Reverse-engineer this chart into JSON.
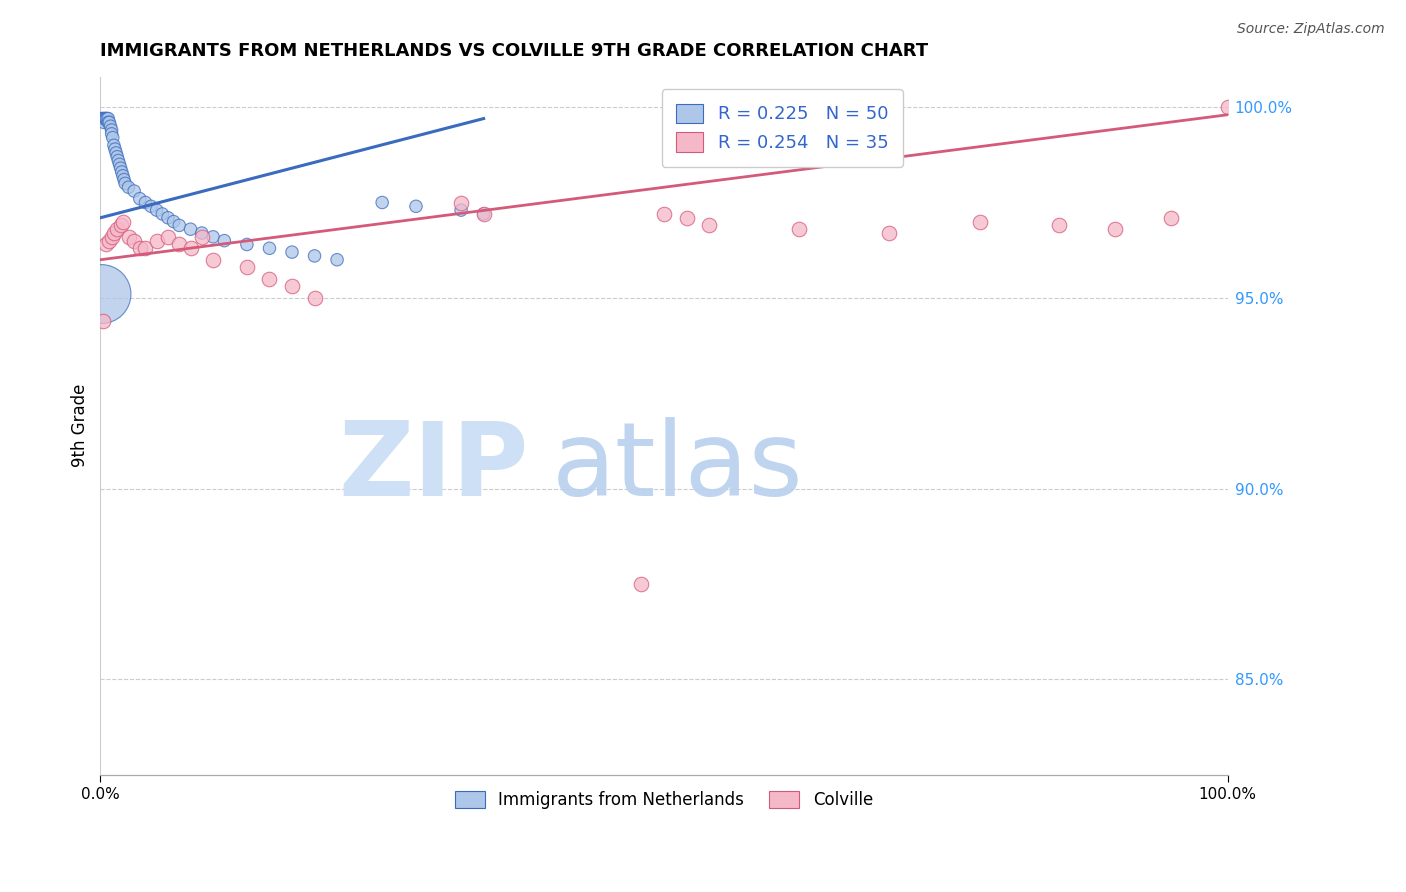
{
  "title": "IMMIGRANTS FROM NETHERLANDS VS COLVILLE 9TH GRADE CORRELATION CHART",
  "source": "Source: ZipAtlas.com",
  "ylabel": "9th Grade",
  "xlim": [
    0.0,
    1.0
  ],
  "ylim": [
    0.825,
    1.008
  ],
  "yticks": [
    0.85,
    0.9,
    0.95,
    1.0
  ],
  "ytick_labels": [
    "85.0%",
    "90.0%",
    "95.0%",
    "100.0%"
  ],
  "xtick_labels": [
    "0.0%",
    "100.0%"
  ],
  "legend_r1": "R = 0.225   N = 50",
  "legend_r2": "R = 0.254   N = 35",
  "blue_color": "#aec6e8",
  "blue_line_color": "#3a6bbf",
  "pink_color": "#f5b8c8",
  "pink_line_color": "#d45a7a",
  "blue_scatter_x": [
    0.001,
    0.002,
    0.003,
    0.003,
    0.004,
    0.005,
    0.005,
    0.006,
    0.007,
    0.007,
    0.008,
    0.009,
    0.01,
    0.01,
    0.011,
    0.012,
    0.013,
    0.014,
    0.015,
    0.016,
    0.017,
    0.018,
    0.019,
    0.02,
    0.021,
    0.022,
    0.025,
    0.03,
    0.035,
    0.04,
    0.045,
    0.05,
    0.055,
    0.06,
    0.065,
    0.07,
    0.08,
    0.09,
    0.1,
    0.11,
    0.13,
    0.15,
    0.17,
    0.19,
    0.21,
    0.25,
    0.28,
    0.32,
    0.34,
    0.001
  ],
  "blue_scatter_y": [
    0.997,
    0.997,
    0.997,
    0.996,
    0.997,
    0.997,
    0.997,
    0.997,
    0.997,
    0.996,
    0.996,
    0.995,
    0.994,
    0.993,
    0.992,
    0.99,
    0.989,
    0.988,
    0.987,
    0.986,
    0.985,
    0.984,
    0.983,
    0.982,
    0.981,
    0.98,
    0.979,
    0.978,
    0.976,
    0.975,
    0.974,
    0.973,
    0.972,
    0.971,
    0.97,
    0.969,
    0.968,
    0.967,
    0.966,
    0.965,
    0.964,
    0.963,
    0.962,
    0.961,
    0.96,
    0.975,
    0.974,
    0.973,
    0.972,
    0.951
  ],
  "blue_scatter_sizes": [
    80,
    80,
    80,
    80,
    80,
    80,
    80,
    80,
    80,
    80,
    80,
    80,
    80,
    80,
    80,
    80,
    80,
    80,
    80,
    80,
    80,
    80,
    80,
    80,
    80,
    80,
    80,
    80,
    80,
    80,
    80,
    80,
    80,
    80,
    80,
    80,
    80,
    80,
    80,
    80,
    80,
    80,
    80,
    80,
    80,
    80,
    80,
    80,
    80,
    1800
  ],
  "pink_scatter_x": [
    0.002,
    0.005,
    0.008,
    0.01,
    0.012,
    0.015,
    0.018,
    0.02,
    0.025,
    0.03,
    0.035,
    0.04,
    0.05,
    0.06,
    0.07,
    0.08,
    0.09,
    0.1,
    0.13,
    0.15,
    0.17,
    0.19,
    0.32,
    0.34,
    0.48,
    0.5,
    0.52,
    0.54,
    0.62,
    0.7,
    0.78,
    0.85,
    0.9,
    0.95,
    1.0
  ],
  "pink_scatter_y": [
    0.944,
    0.964,
    0.965,
    0.966,
    0.967,
    0.968,
    0.969,
    0.97,
    0.966,
    0.965,
    0.963,
    0.963,
    0.965,
    0.966,
    0.964,
    0.963,
    0.966,
    0.96,
    0.958,
    0.955,
    0.953,
    0.95,
    0.975,
    0.972,
    0.875,
    0.972,
    0.971,
    0.969,
    0.968,
    0.967,
    0.97,
    0.969,
    0.968,
    0.971,
    1.0
  ],
  "blue_line_x": [
    0.0,
    0.34
  ],
  "blue_line_y": [
    0.971,
    0.997
  ],
  "pink_line_x": [
    0.0,
    1.0
  ],
  "pink_line_y": [
    0.96,
    0.998
  ]
}
